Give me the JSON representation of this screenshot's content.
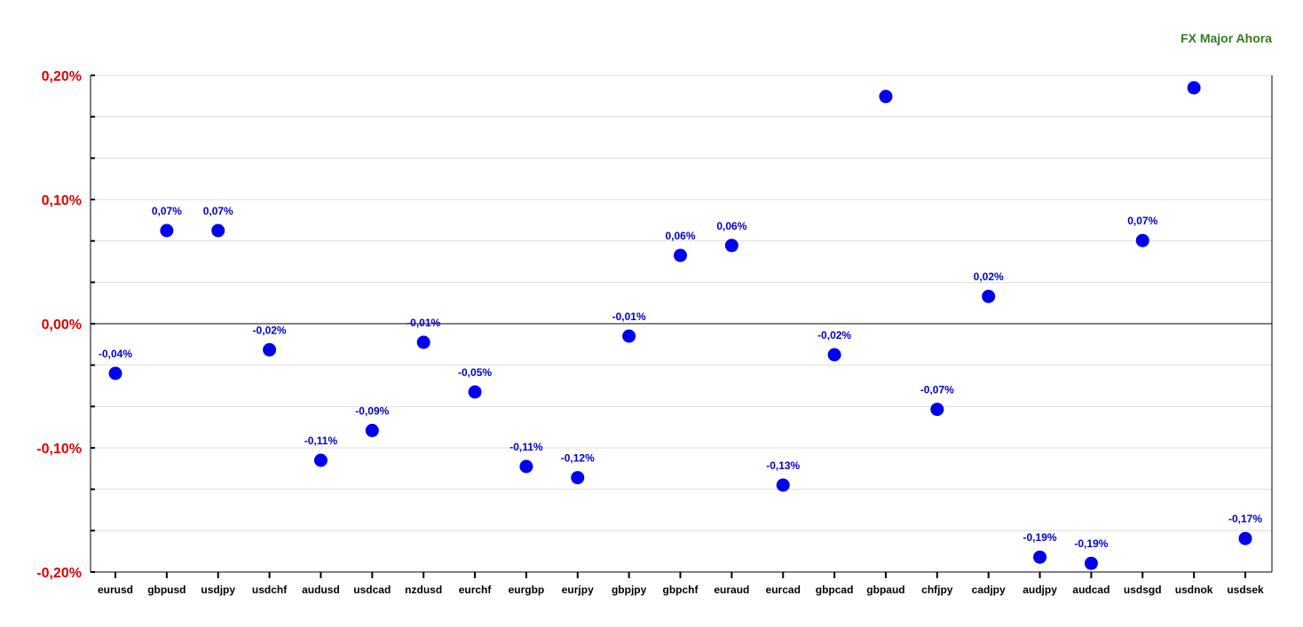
{
  "chart_data": {
    "type": "scatter",
    "title": "FX Major Ahora",
    "xlabel": "",
    "ylabel": "",
    "ylim": [
      -0.2,
      0.2
    ],
    "yticks": [
      0.2,
      0.1,
      0.0,
      -0.1,
      -0.2
    ],
    "ytick_labels": [
      "0,20%",
      "0,10%",
      "0,00%",
      "-0,10%",
      "-0,20%"
    ],
    "grid": true,
    "legend": "none",
    "categories": [
      "eurusd",
      "gbpusd",
      "usdjpy",
      "usdchf",
      "audusd",
      "usdcad",
      "nzdusd",
      "eurchf",
      "eurgbp",
      "eurjpy",
      "gbpjpy",
      "gbpchf",
      "euraud",
      "eurcad",
      "gbpcad",
      "gbpaud",
      "chfjpy",
      "cadjpy",
      "audjpy",
      "audcad",
      "usdsgd",
      "usdnok",
      "usdsek"
    ],
    "values": [
      -0.04,
      0.075,
      0.075,
      -0.021,
      -0.11,
      -0.086,
      -0.015,
      -0.055,
      -0.115,
      -0.124,
      -0.01,
      0.055,
      0.063,
      -0.13,
      -0.025,
      0.183,
      -0.069,
      0.022,
      -0.188,
      -0.193,
      0.067,
      0.19,
      -0.173
    ],
    "data_labels": [
      "-0,04%",
      "0,07%",
      "0,07%",
      "-0,02%",
      "-0,11%",
      "-0,09%",
      "-0,01%",
      "-0,05%",
      "-0,11%",
      "-0,12%",
      "-0,01%",
      "0,06%",
      "0,06%",
      "-0,13%",
      "-0,02%",
      "",
      "-0,07%",
      "0,02%",
      "-0,19%",
      "-0,19%",
      "0,07%",
      "",
      "-0,17%"
    ],
    "colors": {
      "point": "#0000ee",
      "label": "#0000cc",
      "ytick": "#dd0000",
      "title": "#2e7d1a",
      "grid": "#dddddd",
      "axis": "#000000"
    }
  }
}
